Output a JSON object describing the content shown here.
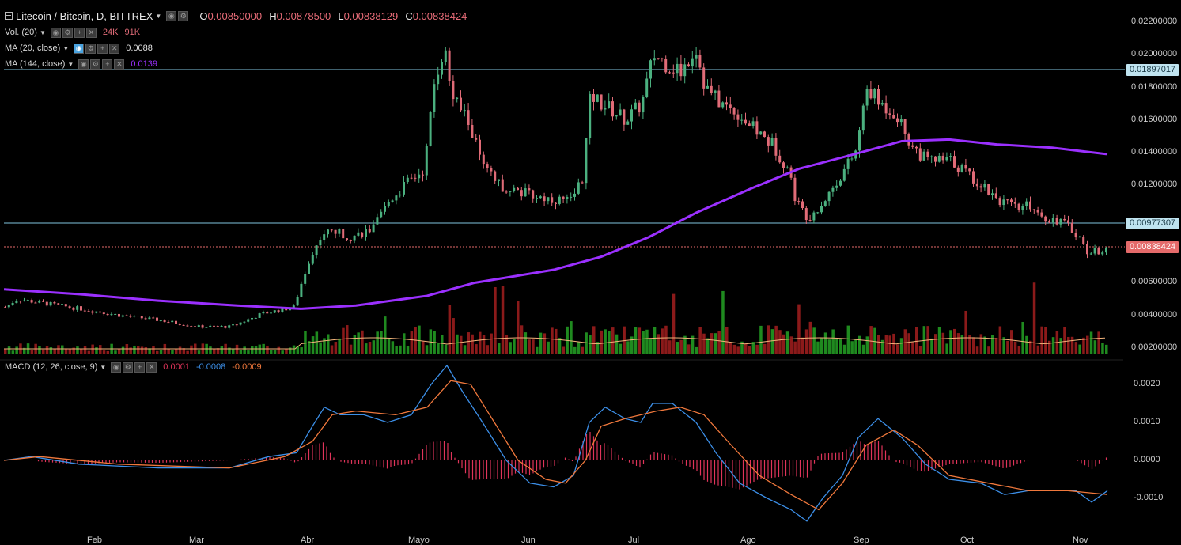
{
  "header": {
    "symbol_title": "Litecoin / Bitcoin, D, BITTREX",
    "open_label": "O",
    "open_value": "0.00850000",
    "high_label": "H",
    "high_value": "0.00878500",
    "low_label": "L",
    "low_value": "0.00838129",
    "close_label": "C",
    "close_value": "0.00838424"
  },
  "indicators": {
    "volume": {
      "label": "Vol. (20)",
      "v1": "24K",
      "v2": "91K"
    },
    "ma20": {
      "label": "MA (20, close)",
      "value": "0.0088"
    },
    "ma144": {
      "label": "MA (144, close)",
      "value": "0.0139"
    },
    "macd": {
      "label": "MACD (12, 26, close, 9)",
      "hist": "0.0001",
      "macd": "-0.0008",
      "signal": "-0.0009"
    }
  },
  "price_axis": {
    "ticks": [
      "0.02200000",
      "0.02000000",
      "0.01800000",
      "0.01600000",
      "0.01400000",
      "0.01200000",
      "0.00600000",
      "0.00400000",
      "0.00200000"
    ],
    "tags": [
      {
        "value": "0.01897017",
        "kind": "line"
      },
      {
        "value": "0.00977307",
        "kind": "line"
      },
      {
        "value": "0.00838424",
        "kind": "last"
      }
    ]
  },
  "macd_axis": {
    "ticks": [
      "0.0020",
      "0.0010",
      "0.0000",
      "-0.0010"
    ]
  },
  "time_axis": {
    "months": [
      "Feb",
      "Mar",
      "Abr",
      "Mayo",
      "Jun",
      "Jul",
      "Ago",
      "Sep",
      "Oct",
      "Nov"
    ]
  },
  "colors": {
    "up": "#4bb07f",
    "down": "#e06b77",
    "ma144": "#9b30ff",
    "ma20": "#f2b37a",
    "macd": "#3c8fe8",
    "signal": "#f0783c",
    "hline": "#7fc3de"
  },
  "chart_data": {
    "type": "candlestick",
    "title": "Litecoin / Bitcoin, D, BITTREX",
    "price_range": [
      0.0016,
      0.0225
    ],
    "key_closes_by_month": {
      "Jan-end": 0.0047,
      "Mar-start": 0.0035,
      "Mar-end": 0.0043,
      "Abr-start": 0.0065,
      "Abr-mid": 0.0095,
      "Abr-end": 0.0115,
      "Mayo-peak": 0.0215,
      "Mayo-end": 0.013,
      "Jun": 0.011,
      "Jun-end": 0.018,
      "Jul-peak": 0.0215,
      "Jul-end": 0.0165,
      "Ago-mid": 0.01,
      "Ago-end": 0.0185,
      "Sep": 0.0135,
      "Oct": 0.0105,
      "Nov": 0.00838
    },
    "horizontal_lines": [
      0.01897017,
      0.00977307
    ],
    "last_price": 0.00838424,
    "ma144_last": 0.0139,
    "ma20_last": 0.0088,
    "macd_range": [
      -0.0017,
      0.0025
    ],
    "macd_last": -0.0008,
    "signal_last": -0.0009,
    "hist_last": 0.0001
  }
}
